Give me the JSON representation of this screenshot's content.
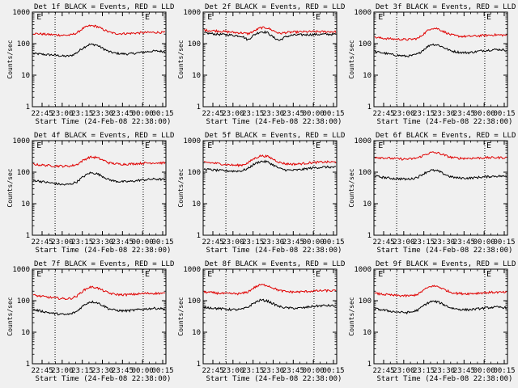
{
  "figure": {
    "background": "#f0f0f0",
    "event_color": "#000000",
    "lld_color": "#e00000"
  },
  "chart_data": [
    {
      "type": "line",
      "title": "Det 1f BLACK = Events, RED = LLD",
      "xlabel": "Start Time (24-Feb-08 22:38:00)",
      "ylabel": "Counts/sec",
      "yscale": "log",
      "ylim": [
        1,
        1000
      ],
      "x_tick_labels": [
        "22:45",
        "23:00",
        "23:15",
        "23:30",
        "23:45",
        "00:00",
        "00:15"
      ],
      "annotation_marks": [
        "E",
        "E"
      ],
      "grid": false,
      "series": [
        {
          "color": "#000000",
          "values": [
            48,
            47,
            45,
            44,
            42,
            40,
            41,
            52,
            75,
            95,
            92,
            72,
            56,
            50,
            48,
            47,
            49,
            52,
            55,
            58,
            58,
            56
          ]
        },
        {
          "color": "#e00000",
          "values": [
            210,
            205,
            198,
            192,
            188,
            185,
            188,
            220,
            310,
            370,
            360,
            290,
            235,
            210,
            208,
            210,
            215,
            220,
            225,
            228,
            228,
            226
          ]
        }
      ]
    },
    {
      "type": "line",
      "title": "Det 2f BLACK = Events, RED = LLD",
      "xlabel": "Start Time (24-Feb-08 22:38:00)",
      "ylabel": "Counts/sec",
      "yscale": "log",
      "ylim": [
        1,
        1000
      ],
      "x_tick_labels": [
        "22:45",
        "23:00",
        "23:15",
        "23:30",
        "23:45",
        "00:00",
        "00:15"
      ],
      "annotation_marks": [
        "E",
        "E"
      ],
      "grid": false,
      "series": [
        {
          "color": "#000000",
          "values": [
            220,
            210,
            200,
            195,
            190,
            180,
            175,
            130,
            190,
            240,
            230,
            160,
            125,
            165,
            185,
            190,
            192,
            194,
            196,
            198,
            198,
            198
          ]
        },
        {
          "color": "#e00000",
          "values": [
            270,
            260,
            255,
            245,
            235,
            225,
            220,
            205,
            250,
            320,
            320,
            260,
            210,
            225,
            232,
            235,
            238,
            240,
            240,
            240,
            240,
            238
          ]
        }
      ]
    },
    {
      "type": "line",
      "title": "Det 3f BLACK = Events, RED = LLD",
      "xlabel": "Start Time (24-Feb-08 22:38:00)",
      "ylabel": "Counts/sec",
      "yscale": "log",
      "ylim": [
        1,
        1000
      ],
      "x_tick_labels": [
        "22:45",
        "23:00",
        "23:15",
        "23:30",
        "23:45",
        "00:00",
        "00:15"
      ],
      "annotation_marks": [
        "E",
        "E"
      ],
      "grid": false,
      "series": [
        {
          "color": "#000000",
          "values": [
            55,
            52,
            48,
            44,
            42,
            40,
            42,
            48,
            70,
            95,
            92,
            75,
            60,
            55,
            52,
            52,
            55,
            60,
            62,
            65,
            65,
            62
          ]
        },
        {
          "color": "#e00000",
          "values": [
            160,
            150,
            145,
            140,
            138,
            135,
            138,
            150,
            220,
            310,
            300,
            240,
            195,
            175,
            170,
            170,
            175,
            180,
            185,
            190,
            188,
            185
          ]
        }
      ]
    },
    {
      "type": "line",
      "title": "Det 4f BLACK = Events, RED = LLD",
      "xlabel": "Start Time (24-Feb-08 22:38:00)",
      "ylabel": "Counts/sec",
      "yscale": "log",
      "ylim": [
        1,
        1000
      ],
      "x_tick_labels": [
        "22:45",
        "23:00",
        "23:15",
        "23:30",
        "23:45",
        "00:00",
        "00:15"
      ],
      "annotation_marks": [
        "E",
        "E"
      ],
      "grid": false,
      "series": [
        {
          "color": "#000000",
          "values": [
            55,
            52,
            48,
            45,
            42,
            40,
            42,
            50,
            72,
            95,
            92,
            75,
            58,
            52,
            50,
            50,
            52,
            56,
            58,
            60,
            60,
            58
          ]
        },
        {
          "color": "#e00000",
          "values": [
            180,
            170,
            165,
            160,
            158,
            155,
            158,
            175,
            240,
            300,
            295,
            245,
            200,
            185,
            180,
            180,
            185,
            190,
            195,
            198,
            198,
            196
          ]
        }
      ]
    },
    {
      "type": "line",
      "title": "Det 5f BLACK = Events, RED = LLD",
      "xlabel": "Start Time (24-Feb-08 22:38:00)",
      "ylabel": "Counts/sec",
      "yscale": "log",
      "ylim": [
        1,
        1000
      ],
      "x_tick_labels": [
        "22:45",
        "23:00",
        "23:15",
        "23:30",
        "23:45",
        "00:00",
        "00:15"
      ],
      "annotation_marks": [
        "E",
        "E"
      ],
      "grid": false,
      "series": [
        {
          "color": "#000000",
          "values": [
            125,
            120,
            115,
            112,
            110,
            108,
            110,
            130,
            180,
            220,
            215,
            170,
            130,
            118,
            115,
            118,
            125,
            135,
            140,
            145,
            145,
            142
          ]
        },
        {
          "color": "#e00000",
          "values": [
            210,
            200,
            190,
            180,
            172,
            165,
            168,
            195,
            270,
            330,
            320,
            260,
            205,
            185,
            180,
            182,
            190,
            200,
            205,
            210,
            210,
            208
          ]
        }
      ]
    },
    {
      "type": "line",
      "title": "Det 6f BLACK = Events, RED = LLD",
      "xlabel": "Start Time (24-Feb-08 22:38:00)",
      "ylabel": "Counts/sec",
      "yscale": "log",
      "ylim": [
        1,
        1000
      ],
      "x_tick_labels": [
        "22:45",
        "23:00",
        "23:15",
        "23:30",
        "23:45",
        "00:00",
        "00:15"
      ],
      "annotation_marks": [
        "E",
        "E"
      ],
      "grid": false,
      "series": [
        {
          "color": "#000000",
          "values": [
            75,
            70,
            66,
            63,
            62,
            60,
            62,
            72,
            95,
            115,
            110,
            88,
            72,
            66,
            65,
            65,
            67,
            70,
            72,
            75,
            75,
            73
          ]
        },
        {
          "color": "#e00000",
          "values": [
            300,
            290,
            280,
            270,
            265,
            260,
            265,
            290,
            360,
            420,
            410,
            350,
            300,
            280,
            275,
            276,
            280,
            285,
            288,
            290,
            290,
            288
          ]
        }
      ]
    },
    {
      "type": "line",
      "title": "Det 7f BLACK = Events, RED = LLD",
      "xlabel": "Start Time (24-Feb-08 22:38:00)",
      "ylabel": "Counts/sec",
      "yscale": "log",
      "ylim": [
        1,
        1000
      ],
      "x_tick_labels": [
        "22:45",
        "23:00",
        "23:15",
        "23:30",
        "23:45",
        "00:00",
        "00:15"
      ],
      "annotation_marks": [
        "E",
        "E"
      ],
      "grid": false,
      "series": [
        {
          "color": "#000000",
          "values": [
            52,
            48,
            44,
            40,
            38,
            36,
            38,
            46,
            70,
            92,
            90,
            72,
            56,
            50,
            48,
            48,
            50,
            53,
            55,
            57,
            57,
            55
          ]
        },
        {
          "color": "#e00000",
          "values": [
            150,
            140,
            132,
            125,
            120,
            115,
            118,
            140,
            210,
            270,
            265,
            215,
            175,
            160,
            155,
            155,
            160,
            165,
            170,
            172,
            172,
            170
          ]
        }
      ]
    },
    {
      "type": "line",
      "title": "Det 8f BLACK = Events, RED = LLD",
      "xlabel": "Start Time (24-Feb-08 22:38:00)",
      "ylabel": "Counts/sec",
      "yscale": "log",
      "ylim": [
        1,
        1000
      ],
      "x_tick_labels": [
        "22:45",
        "23:00",
        "23:15",
        "23:30",
        "23:45",
        "00:00",
        "00:15"
      ],
      "annotation_marks": [
        "E",
        "E"
      ],
      "grid": false,
      "series": [
        {
          "color": "#000000",
          "values": [
            62,
            60,
            57,
            55,
            53,
            52,
            53,
            62,
            85,
            105,
            100,
            80,
            65,
            60,
            58,
            58,
            60,
            65,
            68,
            70,
            70,
            68
          ]
        },
        {
          "color": "#e00000",
          "values": [
            190,
            182,
            175,
            170,
            168,
            166,
            168,
            190,
            260,
            320,
            310,
            255,
            210,
            195,
            190,
            190,
            195,
            200,
            205,
            208,
            208,
            206
          ]
        }
      ]
    },
    {
      "type": "line",
      "title": "Det 9f BLACK = Events, RED = LLD",
      "xlabel": "Start Time (24-Feb-08 22:38:00)",
      "ylabel": "Counts/sec",
      "yscale": "log",
      "ylim": [
        1,
        1000
      ],
      "x_tick_labels": [
        "22:45",
        "23:00",
        "23:15",
        "23:30",
        "23:45",
        "00:00",
        "00:15"
      ],
      "annotation_marks": [
        "E",
        "E"
      ],
      "grid": false,
      "series": [
        {
          "color": "#000000",
          "values": [
            55,
            52,
            48,
            45,
            43,
            42,
            44,
            52,
            75,
            95,
            92,
            75,
            60,
            55,
            52,
            52,
            54,
            57,
            60,
            62,
            62,
            60
          ]
        },
        {
          "color": "#e00000",
          "values": [
            170,
            162,
            155,
            148,
            145,
            142,
            145,
            165,
            230,
            290,
            285,
            230,
            188,
            172,
            168,
            168,
            172,
            178,
            182,
            185,
            185,
            183
          ]
        }
      ]
    }
  ]
}
